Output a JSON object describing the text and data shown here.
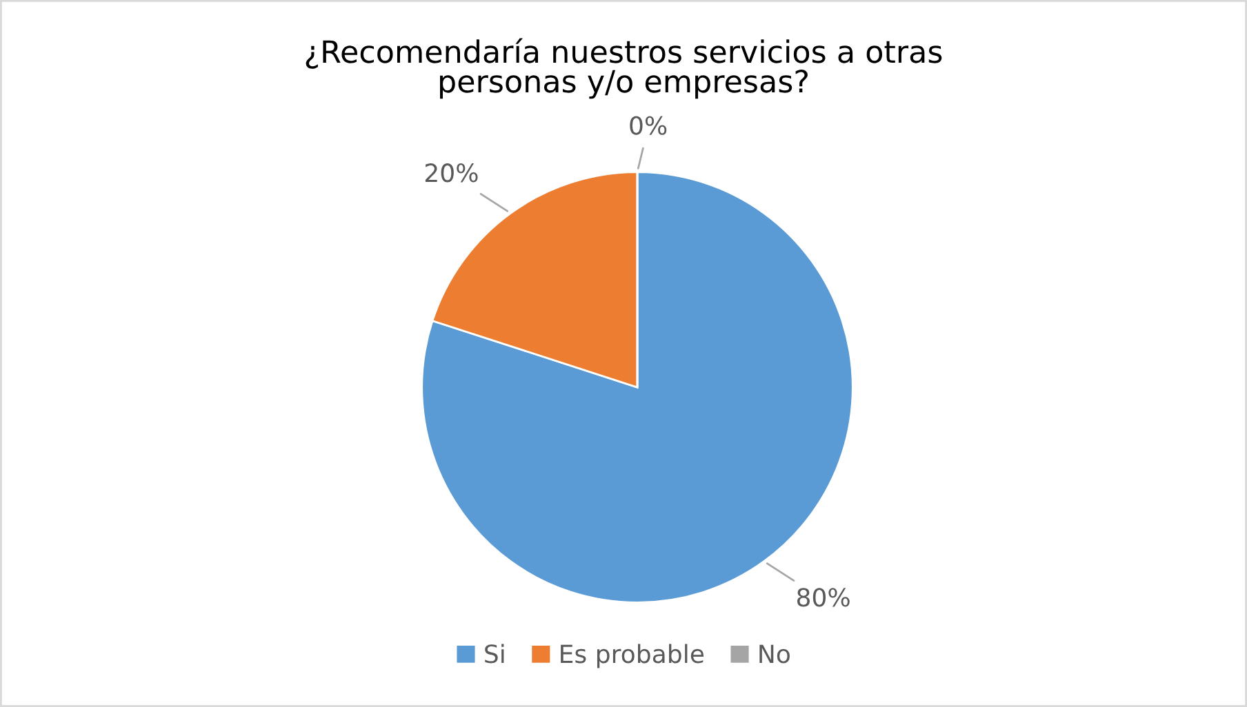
{
  "chart_data": {
    "type": "pie",
    "title": "¿Recomendaría nuestros servicios a otras\npersonas y/o empresas?",
    "categories": [
      "Si",
      "Es probable",
      "No"
    ],
    "values": [
      80,
      20,
      0
    ],
    "colors": [
      "#5b9bd5",
      "#ed7d31",
      "#a5a5a5"
    ],
    "value_labels": [
      "80%",
      "20%",
      "0%"
    ],
    "legend": "bottom"
  }
}
